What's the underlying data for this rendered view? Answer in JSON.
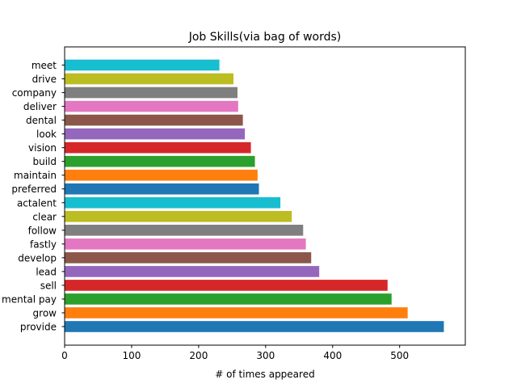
{
  "chart_data": {
    "type": "bar",
    "orientation": "horizontal",
    "title": "Job Skills(via bag of words)",
    "xlabel": "# of times appeared",
    "ylabel": "",
    "xlim": [
      0,
      598
    ],
    "xticks": [
      0,
      100,
      200,
      300,
      400,
      500
    ],
    "grid": false,
    "legend": "none",
    "categories": [
      "provide",
      "grow",
      "mental pay",
      "sell",
      "lead",
      "develop",
      "fastly",
      "follow",
      "clear",
      "actalent",
      "preferred",
      "maintain",
      "build",
      "vision",
      "look",
      "dental",
      "deliver",
      "company",
      "drive",
      "meet"
    ],
    "values": [
      566,
      512,
      488,
      482,
      380,
      368,
      360,
      356,
      339,
      322,
      290,
      288,
      284,
      278,
      269,
      266,
      259,
      258,
      252,
      231
    ],
    "colors": [
      "#1f77b4",
      "#ff7f0e",
      "#2ca02c",
      "#d62728",
      "#9467bd",
      "#8c564b",
      "#e377c2",
      "#7f7f7f",
      "#bcbd22",
      "#17becf",
      "#1f77b4",
      "#ff7f0e",
      "#2ca02c",
      "#d62728",
      "#9467bd",
      "#8c564b",
      "#e377c2",
      "#7f7f7f",
      "#bcbd22",
      "#17becf"
    ]
  }
}
